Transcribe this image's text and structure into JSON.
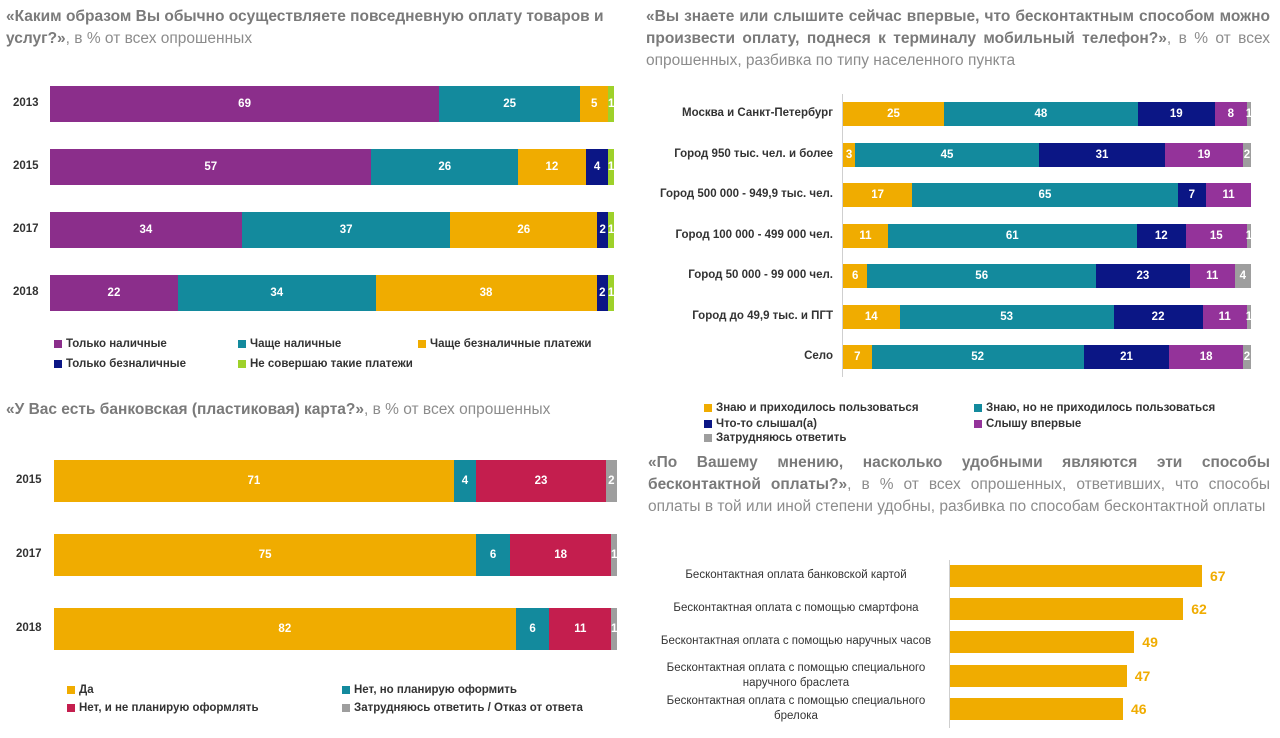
{
  "colors": {
    "purple": "#8b2e8b",
    "teal": "#138a9d",
    "orange": "#f0ac00",
    "navy": "#0b1685",
    "green": "#9ed12a",
    "crimson": "#c41e4e",
    "gray": "#9e9e9e",
    "magenta": "#94339a"
  },
  "chart_data": [
    {
      "id": "payment",
      "type": "bar",
      "orientation": "horizontal",
      "stacked": true,
      "title_bold": "«Каким образом Вы обычно осуществляете повседневную оплату товаров и услуг?»",
      "title_rest": ", в % от всех опрошенных",
      "categories": [
        "2013",
        "2015",
        "2017",
        "2018"
      ],
      "series": [
        {
          "name": "Только наличные",
          "color": "purple",
          "values": [
            69,
            57,
            34,
            22
          ]
        },
        {
          "name": "Чаще наличные",
          "color": "teal",
          "values": [
            25,
            26,
            37,
            34
          ]
        },
        {
          "name": "Чаще безналичные платежи",
          "color": "orange",
          "values": [
            5,
            12,
            26,
            38
          ]
        },
        {
          "name": "Только безналичные",
          "color": "navy",
          "values": [
            0,
            4,
            2,
            2
          ]
        },
        {
          "name": "Не совершаю такие платежи",
          "color": "green",
          "values": [
            1,
            1,
            1,
            1
          ]
        }
      ]
    },
    {
      "id": "card",
      "type": "bar",
      "orientation": "horizontal",
      "stacked": true,
      "title_bold": "«У Вас есть банковская (пластиковая) карта?»",
      "title_rest": ", в % от всех опрошенных",
      "categories": [
        "2015",
        "2017",
        "2018"
      ],
      "series": [
        {
          "name": "Да",
          "color": "orange",
          "values": [
            71,
            75,
            82
          ]
        },
        {
          "name": "Нет, но планирую оформить",
          "color": "teal",
          "values": [
            4,
            6,
            6
          ]
        },
        {
          "name": "Нет, и не планирую оформлять",
          "color": "crimson",
          "values": [
            23,
            18,
            11
          ]
        },
        {
          "name": "Затрудняюсь ответить / Отказ от ответа",
          "color": "gray",
          "values": [
            2,
            1,
            1
          ]
        }
      ]
    },
    {
      "id": "contactless",
      "type": "bar",
      "orientation": "horizontal",
      "stacked": true,
      "title_bold": "«Вы знаете или слышите сейчас впервые, что бесконтактным способом можно произвести оплату, поднеся к терминалу мобильный телефон?»",
      "title_rest": ", в % от всех опрошенных, разбивка по типу населенного пункта",
      "categories": [
        "Москва и Санкт-Петербург",
        "Город 950 тыс. чел. и более",
        "Город 500 000 - 949,9 тыс. чел.",
        "Город 100 000 - 499 000 чел.",
        "Город 50 000 - 99 000 чел.",
        "Город до 49,9 тыс. и ПГТ",
        "Село"
      ],
      "series": [
        {
          "name": "Знаю и приходилось пользоваться",
          "color": "orange",
          "values": [
            25,
            3,
            17,
            11,
            6,
            14,
            7
          ]
        },
        {
          "name": "Знаю, но не приходилось пользоваться",
          "color": "teal",
          "values": [
            48,
            45,
            65,
            61,
            56,
            53,
            52
          ]
        },
        {
          "name": "Что-то слышал(а)",
          "color": "navy",
          "values": [
            19,
            31,
            7,
            12,
            23,
            22,
            21
          ]
        },
        {
          "name": "Слышу впервые",
          "color": "magenta",
          "values": [
            8,
            19,
            11,
            15,
            11,
            11,
            18
          ]
        },
        {
          "name": "Затрудняюсь ответить",
          "color": "gray",
          "values": [
            1,
            2,
            0,
            1,
            4,
            1,
            2
          ]
        }
      ]
    },
    {
      "id": "convenience",
      "type": "bar",
      "orientation": "horizontal",
      "stacked": false,
      "title_bold": "«По Вашему мнению, насколько удобными являются эти способы бесконтактной оплаты?»",
      "title_rest": ", в % от всех опрошенных, ответивших, что способы оплаты в той или иной степени удобны, разбивка по способам бесконтактной оплаты",
      "categories": [
        "Бесконтактная оплата банковской картой",
        "Бесконтактная оплата с помощью смартфона",
        "Бесконтактная оплата с помощью наручных часов",
        "Бесконтактная оплата с помощью специального наручного браслета",
        "Бесконтактная оплата с помощью специального брелока"
      ],
      "values": [
        67,
        62,
        49,
        47,
        46
      ],
      "color": "orange"
    }
  ]
}
